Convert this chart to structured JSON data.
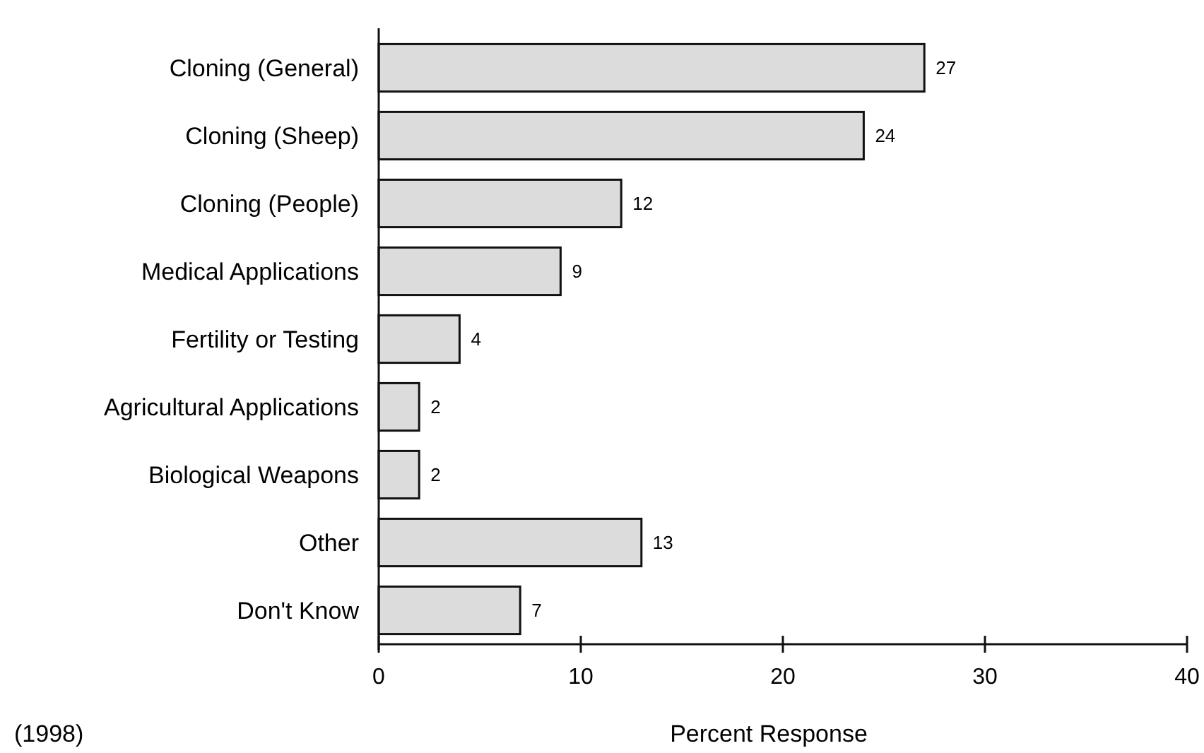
{
  "chart_data": {
    "type": "bar",
    "orientation": "horizontal",
    "categories": [
      "Cloning (General)",
      "Cloning (Sheep)",
      "Cloning (People)",
      "Medical Applications",
      "Fertility or Testing",
      "Agricultural Applications",
      "Biological Weapons",
      "Other",
      "Don't Know"
    ],
    "values": [
      27,
      24,
      12,
      9,
      4,
      2,
      2,
      13,
      7
    ],
    "color": "#dcdcdc",
    "xlim": [
      0,
      40
    ],
    "xticks": [
      0,
      10,
      20,
      30,
      40
    ],
    "xlabel": "Percent Response",
    "data_labels": true,
    "annotations": [
      "(1998)"
    ]
  }
}
